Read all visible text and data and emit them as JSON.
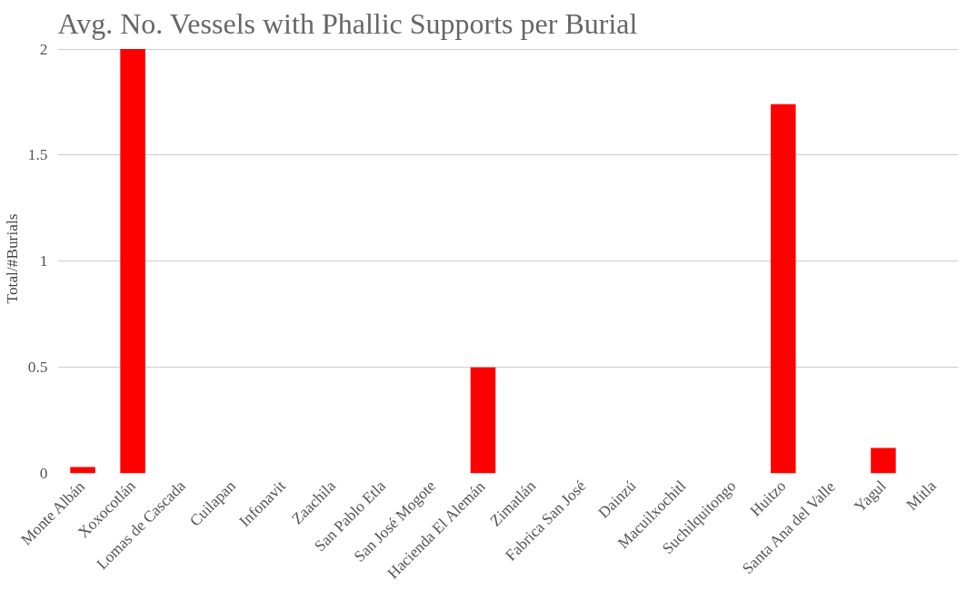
{
  "chart_data": {
    "type": "bar",
    "title": "Avg. No. Vessels with Phallic Supports per Burial",
    "ylabel": "Total/#Burials",
    "categories": [
      "Monte Albán",
      "Xoxocotlán",
      "Lomas de Cascada",
      "Cuilapan",
      "Infonavit",
      "Zaachila",
      "San Pablo Etla",
      "San José Mogote",
      "Hacienda El Alemán",
      "Zimatlán",
      "Fabrica San José",
      "Dainzú",
      "Macuilxochitl",
      "Suchilquitongo",
      "Huitzo",
      "Santa Ana del Valle",
      "Yagul",
      "Mitla"
    ],
    "values": [
      0.03,
      2,
      0,
      0,
      0,
      0,
      0,
      0,
      0.5,
      0,
      0,
      0,
      0,
      0,
      1.74,
      0,
      0.12,
      0
    ],
    "color": "#ff0000",
    "ylim": [
      0,
      2
    ],
    "yticks": [
      0,
      0.5,
      1,
      1.5,
      2
    ],
    "grid": "y"
  }
}
